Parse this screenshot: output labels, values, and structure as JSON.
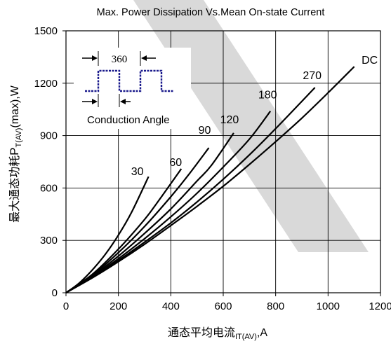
{
  "chart_data": {
    "type": "line",
    "title": "Max. Power Dissipation Vs.Mean On-state Current",
    "xlabel_main": "通态平均电流",
    "xlabel_sub": "IT(AV)",
    "xlabel_tail": ",A",
    "ylabel_main": "最大通态功耗",
    "ylabel_p": "P",
    "ylabel_sub": "T(AV)",
    "ylabel_tail": "(max),W",
    "xlim": [
      0,
      1200
    ],
    "ylim": [
      0,
      1500
    ],
    "xticks": [
      0,
      200,
      400,
      600,
      800,
      1000,
      1200
    ],
    "yticks": [
      0,
      300,
      600,
      900,
      1200,
      1500
    ],
    "grid": true,
    "series": [
      {
        "name": "30",
        "x": [
          0,
          50,
          100,
          150,
          200,
          250,
          315
        ],
        "y": [
          0,
          55,
          130,
          220,
          330,
          460,
          665
        ],
        "color": "#000000"
      },
      {
        "name": "60",
        "x": [
          0,
          100,
          200,
          300,
          350,
          400,
          440
        ],
        "y": [
          0,
          105,
          250,
          420,
          520,
          625,
          710
        ],
        "color": "#000000"
      },
      {
        "name": "90",
        "x": [
          0,
          100,
          200,
          300,
          400,
          470,
          545
        ],
        "y": [
          0,
          100,
          230,
          380,
          550,
          680,
          830
        ],
        "color": "#000000"
      },
      {
        "name": "120",
        "x": [
          0,
          100,
          200,
          300,
          400,
          500,
          555,
          640
        ],
        "y": [
          0,
          95,
          210,
          340,
          480,
          640,
          730,
          915
        ],
        "color": "#000000"
      },
      {
        "name": "180",
        "x": [
          0,
          100,
          200,
          300,
          400,
          500,
          600,
          700,
          780
        ],
        "y": [
          0,
          90,
          195,
          310,
          435,
          570,
          720,
          880,
          1040
        ],
        "color": "#000000"
      },
      {
        "name": "270",
        "x": [
          0,
          100,
          200,
          300,
          400,
          500,
          600,
          700,
          800,
          950
        ],
        "y": [
          0,
          88,
          185,
          290,
          400,
          520,
          650,
          790,
          940,
          1175
        ],
        "color": "#000000"
      },
      {
        "name": "DC",
        "x": [
          0,
          100,
          200,
          300,
          400,
          500,
          600,
          700,
          800,
          900,
          1000,
          1100
        ],
        "y": [
          0,
          85,
          178,
          278,
          385,
          495,
          610,
          735,
          865,
          1000,
          1145,
          1295
        ],
        "color": "#000000"
      }
    ],
    "curve_labels": [
      "30",
      "60",
      "90",
      "120",
      "180",
      "270",
      "DC"
    ],
    "inset": {
      "angle_label": "360",
      "caption": "Conduction Angle",
      "waveform_color": "#1a1a8c"
    },
    "watermark_color": "#cccccc"
  }
}
